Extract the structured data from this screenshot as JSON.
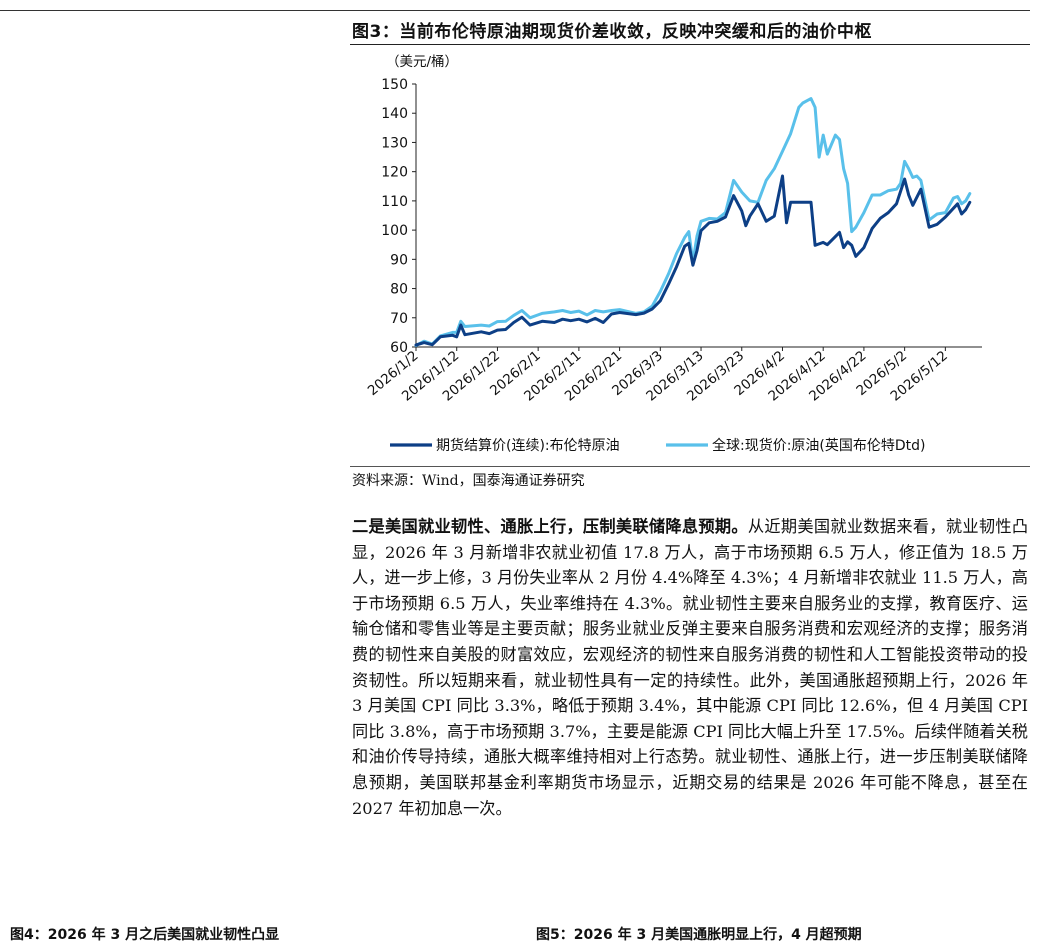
{
  "figure": {
    "title": "图3：当前布伦特原油期现货价差收敛，反映冲突缓和后的油价中枢",
    "source": "资料来源：Wind，国泰海通证券研究"
  },
  "chart_data": {
    "type": "line",
    "unit_label": "（美元/桶）",
    "ylim": [
      60,
      150
    ],
    "y_ticks": [
      60,
      70,
      80,
      90,
      100,
      110,
      120,
      130,
      140,
      150
    ],
    "x_tick_labels": [
      "2026/1/2",
      "2026/1/12",
      "2026/1/22",
      "2026/2/1",
      "2026/2/11",
      "2026/2/21",
      "2026/3/3",
      "2026/3/13",
      "2026/3/23",
      "2026/4/2",
      "2026/4/12",
      "2026/4/22",
      "2026/5/2",
      "2026/5/12"
    ],
    "grid": false,
    "legend_position": "bottom",
    "x_start": "2026/1/2",
    "x_step_days": 1,
    "series": [
      {
        "name": "期货结算价(连续):布伦特原油",
        "color": "#0d3f86",
        "points": [
          [
            0,
            60.7
          ],
          [
            2,
            61.5
          ],
          [
            4,
            60.8
          ],
          [
            6,
            63.5
          ],
          [
            9,
            64.0
          ],
          [
            10,
            63.5
          ],
          [
            11,
            67.5
          ],
          [
            12,
            64.2
          ],
          [
            16,
            65.2
          ],
          [
            18,
            64.6
          ],
          [
            20,
            65.8
          ],
          [
            22,
            66.0
          ],
          [
            24,
            68.4
          ],
          [
            26,
            70.2
          ],
          [
            28,
            67.5
          ],
          [
            31,
            68.8
          ],
          [
            34,
            68.4
          ],
          [
            36,
            69.5
          ],
          [
            38,
            69.0
          ],
          [
            40,
            69.5
          ],
          [
            42,
            68.6
          ],
          [
            44,
            69.8
          ],
          [
            46,
            68.4
          ],
          [
            48,
            71.3
          ],
          [
            50,
            71.8
          ],
          [
            54,
            71.1
          ],
          [
            56,
            71.6
          ],
          [
            58,
            73.0
          ],
          [
            60,
            75.8
          ],
          [
            62,
            81.5
          ],
          [
            64,
            87.5
          ],
          [
            66,
            94.5
          ],
          [
            67,
            95.5
          ],
          [
            68,
            88.0
          ],
          [
            69,
            93.0
          ],
          [
            70,
            99.8
          ],
          [
            72,
            102.5
          ],
          [
            74,
            103.0
          ],
          [
            76,
            104.5
          ],
          [
            78,
            111.8
          ],
          [
            80,
            106.5
          ],
          [
            81,
            101.5
          ],
          [
            82,
            104.8
          ],
          [
            84,
            109.0
          ],
          [
            86,
            103.0
          ],
          [
            88,
            104.8
          ],
          [
            90,
            118.5
          ],
          [
            91,
            102.5
          ],
          [
            92,
            109.5
          ],
          [
            95,
            109.5
          ],
          [
            97,
            109.5
          ],
          [
            98,
            94.8
          ],
          [
            100,
            95.8
          ],
          [
            101,
            95.0
          ],
          [
            104,
            99.2
          ],
          [
            105,
            94.0
          ],
          [
            106,
            96.0
          ],
          [
            107,
            94.8
          ],
          [
            108,
            91.0
          ],
          [
            110,
            94.0
          ],
          [
            112,
            100.5
          ],
          [
            114,
            104.0
          ],
          [
            116,
            106.0
          ],
          [
            118,
            109.0
          ],
          [
            120,
            117.5
          ],
          [
            121,
            112.0
          ],
          [
            122,
            108.5
          ],
          [
            124,
            114.0
          ],
          [
            126,
            101.0
          ],
          [
            128,
            102.0
          ],
          [
            130,
            104.5
          ],
          [
            132,
            107.5
          ],
          [
            133,
            109.0
          ],
          [
            134,
            105.5
          ],
          [
            135,
            107.0
          ],
          [
            136,
            109.5
          ]
        ]
      },
      {
        "name": "全球:现货价:原油(英国布伦特Dtd)",
        "color": "#59c0ea",
        "points": [
          [
            0,
            60.5
          ],
          [
            2,
            62.0
          ],
          [
            4,
            61.0
          ],
          [
            6,
            63.8
          ],
          [
            9,
            65.0
          ],
          [
            10,
            65.0
          ],
          [
            11,
            68.8
          ],
          [
            12,
            67.0
          ],
          [
            16,
            67.5
          ],
          [
            18,
            67.2
          ],
          [
            20,
            68.7
          ],
          [
            22,
            68.8
          ],
          [
            24,
            70.8
          ],
          [
            26,
            72.5
          ],
          [
            28,
            70.0
          ],
          [
            31,
            71.5
          ],
          [
            34,
            72.0
          ],
          [
            36,
            72.5
          ],
          [
            38,
            71.8
          ],
          [
            40,
            72.3
          ],
          [
            42,
            71.0
          ],
          [
            44,
            72.5
          ],
          [
            46,
            72.0
          ],
          [
            48,
            72.5
          ],
          [
            50,
            72.8
          ],
          [
            54,
            71.5
          ],
          [
            56,
            72.0
          ],
          [
            58,
            74.0
          ],
          [
            60,
            79.0
          ],
          [
            62,
            85.0
          ],
          [
            64,
            92.0
          ],
          [
            66,
            97.5
          ],
          [
            67,
            99.5
          ],
          [
            68,
            89.0
          ],
          [
            69,
            98.0
          ],
          [
            70,
            103.0
          ],
          [
            72,
            104.0
          ],
          [
            74,
            103.8
          ],
          [
            76,
            106.0
          ],
          [
            78,
            117.0
          ],
          [
            80,
            113.0
          ],
          [
            82,
            110.0
          ],
          [
            84,
            109.5
          ],
          [
            86,
            117.0
          ],
          [
            88,
            121.0
          ],
          [
            90,
            127.0
          ],
          [
            92,
            133.0
          ],
          [
            94,
            142.0
          ],
          [
            95,
            143.5
          ],
          [
            97,
            145.0
          ],
          [
            98,
            142.0
          ],
          [
            99,
            125.0
          ],
          [
            100,
            132.5
          ],
          [
            101,
            126.0
          ],
          [
            103,
            132.5
          ],
          [
            104,
            131.0
          ],
          [
            105,
            121.0
          ],
          [
            106,
            116.0
          ],
          [
            107,
            99.5
          ],
          [
            108,
            101.0
          ],
          [
            110,
            106.0
          ],
          [
            112,
            112.0
          ],
          [
            114,
            112.0
          ],
          [
            116,
            113.5
          ],
          [
            118,
            114.0
          ],
          [
            119,
            116.0
          ],
          [
            120,
            123.5
          ],
          [
            121,
            121.0
          ],
          [
            122,
            118.0
          ],
          [
            123,
            118.5
          ],
          [
            124,
            117.0
          ],
          [
            126,
            103.5
          ],
          [
            128,
            105.5
          ],
          [
            130,
            106.0
          ],
          [
            132,
            111.0
          ],
          [
            133,
            111.5
          ],
          [
            134,
            109.0
          ],
          [
            135,
            110.0
          ],
          [
            136,
            112.5
          ]
        ]
      }
    ]
  },
  "body": {
    "lead": "二是美国就业韧性、通胀上行，压制美联储降息预期。",
    "rest": "从近期美国就业数据来看，就业韧性凸显，2026 年 3 月新增非农就业初值 17.8 万人，高于市场预期 6.5 万人，修正值为 18.5 万人，进一步上修，3 月份失业率从 2 月份 4.4%降至 4.3%；4 月新增非农就业 11.5 万人，高于市场预期 6.5 万人，失业率维持在 4.3%。就业韧性主要来自服务业的支撑，教育医疗、运输仓储和零售业等是主要贡献；服务业就业反弹主要来自服务消费和宏观经济的支撑；服务消费的韧性来自美股的财富效应，宏观经济的韧性来自服务消费的韧性和人工智能投资带动的投资韧性。所以短期来看，就业韧性具有一定的持续性。此外，美国通胀超预期上行，2026 年 3 月美国 CPI 同比 3.3%，略低于预期 3.4%，其中能源 CPI 同比 12.6%，但 4 月美国 CPI 同比 3.8%，高于市场预期 3.7%，主要是能源 CPI 同比大幅上升至 17.5%。后续伴随着关税和油价传导持续，通胀大概率维持相对上行态势。就业韧性、通胀上行，进一步压制美联储降息预期，美国联邦基金利率期货市场显示，近期交易的结果是 2026 年可能不降息，甚至在 2027 年初加息一次。"
  },
  "next_figures": {
    "left": "图4：2026 年 3 月之后美国就业韧性凸显",
    "right": "图5：2026 年 3 月美国通胀明显上行，4 月超预期"
  }
}
